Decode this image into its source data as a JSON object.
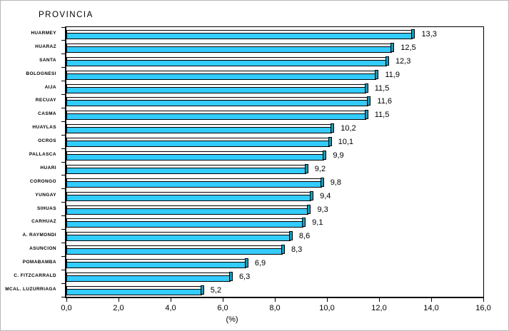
{
  "chart_data": {
    "type": "bar",
    "orientation": "horizontal",
    "title": "PROVINCIA",
    "xlabel": "(%)",
    "xlim": [
      0,
      16
    ],
    "grid": false,
    "legend": "none",
    "bar_color": "#33CCFF",
    "bar_top_color": "#FFFFFF",
    "bar_end_color": "#0AA0C4",
    "bar_border_color": "#000000",
    "categories": [
      "HUARMEY",
      "HUARAZ",
      "SANTA",
      "BOLOGNESI",
      "AIJA",
      "RECUAY",
      "CASMA",
      "HUAYLAS",
      "OCROS",
      "PALLASCA",
      "HUARI",
      "CORONGO",
      "YUNGAY",
      "SIHUAS",
      "CARHUAZ",
      "A. RAYMONDI",
      "ASUNCION",
      "POMABAMBA",
      "C. FITZCARRALD",
      "MCAL. LUZURRIAGA"
    ],
    "values": [
      13.3,
      12.5,
      12.3,
      11.9,
      11.5,
      11.6,
      11.5,
      10.2,
      10.1,
      9.9,
      9.2,
      9.8,
      9.4,
      9.3,
      9.1,
      8.6,
      8.3,
      6.9,
      6.3,
      5.2
    ],
    "value_labels": [
      "13,3",
      "12,5",
      "12,3",
      "11,9",
      "11,5",
      "11,6",
      "11,5",
      "10,2",
      "10,1",
      "9,9",
      "9,2",
      "9,8",
      "9,4",
      "9,3",
      "9,1",
      "8,6",
      "8,3",
      "6,9",
      "6,3",
      "5,2"
    ],
    "xtick_values": [
      0,
      2,
      4,
      6,
      8,
      10,
      12,
      14,
      16
    ],
    "xtick_labels": [
      "0,0",
      "2,0",
      "4,0",
      "6,0",
      "8,0",
      "10,0",
      "12,0",
      "14,0",
      "16,0"
    ]
  }
}
